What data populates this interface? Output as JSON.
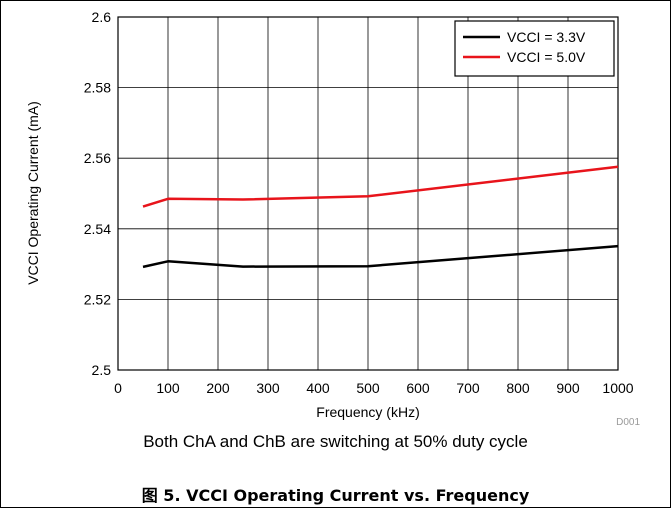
{
  "chart_data": {
    "type": "line",
    "title": "",
    "xlabel": "Frequency (kHz)",
    "ylabel": "VCCI Operating Current (mA)",
    "xlim": [
      0,
      1000
    ],
    "ylim": [
      2.5,
      2.6
    ],
    "x_ticks": [
      0,
      100,
      200,
      300,
      400,
      500,
      600,
      700,
      800,
      900,
      1000
    ],
    "y_ticks": [
      2.5,
      2.52,
      2.54,
      2.56,
      2.58,
      2.6
    ],
    "y_tick_labels": [
      "2.5",
      "2.52",
      "2.54",
      "2.56",
      "2.58",
      "2.6"
    ],
    "grid": true,
    "legend_position": "top-right",
    "series": [
      {
        "name": "VCCI = 3.3V",
        "color": "#000000",
        "x": [
          50,
          100,
          250,
          500,
          1000
        ],
        "y": [
          2.5292,
          2.5308,
          2.5293,
          2.5294,
          2.5351
        ]
      },
      {
        "name": "VCCI = 5.0V",
        "color": "#e8141b",
        "x": [
          50,
          100,
          250,
          500,
          1000
        ],
        "y": [
          2.5463,
          2.5485,
          2.5483,
          2.5492,
          2.5576
        ]
      }
    ],
    "annotations": [
      "D001"
    ]
  },
  "note": "Both ChA and ChB are switching at 50% duty cycle",
  "caption": "图 5. VCCI Operating Current vs. Frequency"
}
